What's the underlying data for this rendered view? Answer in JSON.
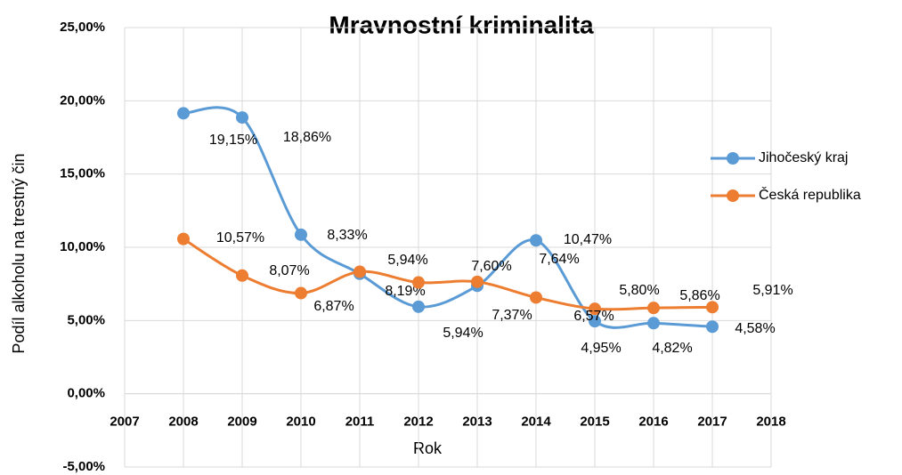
{
  "chart_data": {
    "type": "line",
    "title": "Mravnostní kriminalita",
    "x_label": "Rok",
    "y_label": "Podíl alkoholu na trestný čin",
    "x": [
      2008,
      2009,
      2010,
      2011,
      2012,
      2013,
      2014,
      2015,
      2016,
      2017
    ],
    "series": [
      {
        "name": "Jihočeský kraj",
        "color": "#5b9bd5",
        "values": [
          19.15,
          18.86,
          10.86,
          8.19,
          5.94,
          7.37,
          10.47,
          4.95,
          4.82,
          4.58
        ],
        "value_labels": [
          "19,15%",
          "18,86%",
          null,
          "8,19%",
          "5,94%",
          "7,37%",
          "10,47%",
          "4,95%",
          "4,82%",
          "4,58%"
        ]
      },
      {
        "name": "Česká republika",
        "color": "#ed7d31",
        "values": [
          10.57,
          8.07,
          6.87,
          8.33,
          7.6,
          7.64,
          6.57,
          5.8,
          5.86,
          5.91
        ],
        "value_labels": [
          "10,57%",
          "8,07%",
          "6,87%",
          "8,33%",
          "7,60%",
          "7,64%",
          "6,57%",
          "5,80%",
          "5,86%",
          "5,91%"
        ]
      }
    ],
    "annotations": [
      "5,94%"
    ],
    "xlim": [
      2007,
      2018
    ],
    "xticks": [
      2007,
      2008,
      2009,
      2010,
      2011,
      2012,
      2013,
      2014,
      2015,
      2016,
      2017,
      2018
    ],
    "ylim": [
      -5,
      25
    ],
    "yticks": [
      {
        "value": -5,
        "label": "-5,00%"
      },
      {
        "value": 0,
        "label": "0,00%"
      },
      {
        "value": 5,
        "label": "5,00%"
      },
      {
        "value": 10,
        "label": "10,00%"
      },
      {
        "value": 15,
        "label": "15,00%"
      },
      {
        "value": 20,
        "label": "20,00%"
      },
      {
        "value": 25,
        "label": "25,00%"
      }
    ],
    "grid": true,
    "legend": "right",
    "smooth": true
  }
}
